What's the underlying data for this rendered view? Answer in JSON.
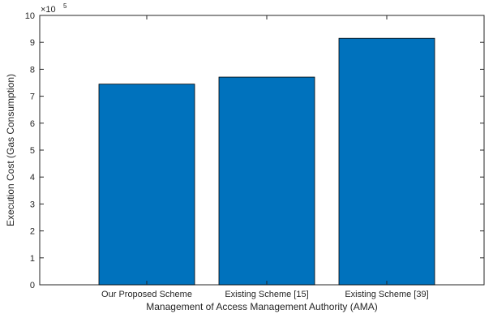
{
  "chart_data": {
    "type": "bar",
    "categories": [
      "Our Proposed Scheme",
      "Existing Scheme [15]",
      "Existing Scheme [39]"
    ],
    "values": [
      745000,
      771000,
      915000
    ],
    "xlabel": "Management of Access Management Authority (AMA)",
    "ylabel": "Execution Cost (Gas Consumption)",
    "ylim": [
      0,
      1000000
    ],
    "y_tick_labels": [
      "0",
      "1",
      "2",
      "3",
      "4",
      "5",
      "6",
      "7",
      "8",
      "9",
      "10"
    ],
    "y_exponent_base": "×10",
    "y_exponent_power": "5",
    "grid": false,
    "bar_color": "#0072BD"
  }
}
